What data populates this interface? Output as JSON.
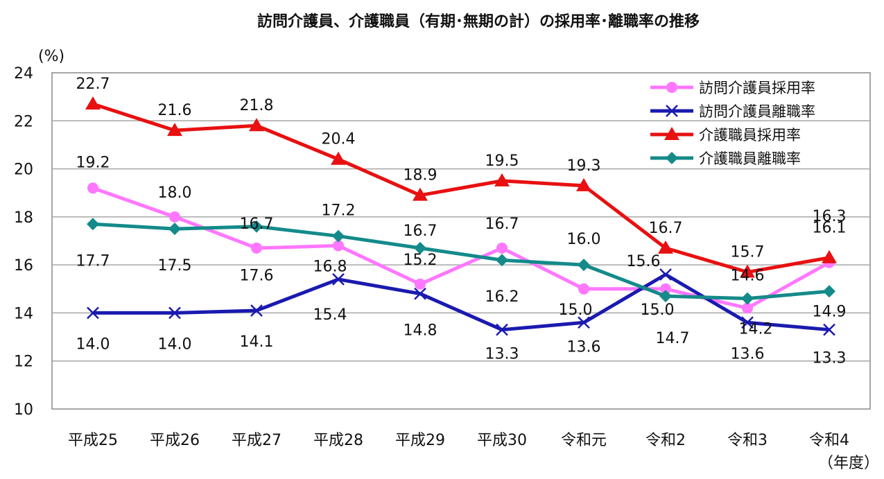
{
  "chart_data": {
    "type": "line",
    "title": "訪問介護員、介護職員（有期･無期の計）の採用率･離職率の推移",
    "ylabel": "(%)",
    "xlabel": "（年度）",
    "ylim": [
      10,
      24
    ],
    "yticks": [
      10,
      12,
      14,
      16,
      18,
      20,
      22,
      24
    ],
    "grid": true,
    "legend_position": "top-right",
    "categories": [
      "平成25",
      "平成26",
      "平成27",
      "平成28",
      "平成29",
      "平成30",
      "令和元",
      "令和2",
      "令和3",
      "令和4"
    ],
    "series": [
      {
        "name": "訪問介護員採用率",
        "color": "#FF77FF",
        "marker": "circle",
        "values": [
          19.2,
          18.0,
          16.7,
          16.8,
          15.2,
          16.7,
          15.0,
          15.0,
          14.2,
          16.1
        ]
      },
      {
        "name": "訪問介護員離職率",
        "color": "#1A1AB0",
        "marker": "x",
        "values": [
          14.0,
          14.0,
          14.1,
          15.4,
          14.8,
          13.3,
          13.6,
          15.6,
          13.6,
          13.3
        ]
      },
      {
        "name": "介護職員採用率",
        "color": "#E81010",
        "marker": "triangle",
        "values": [
          22.7,
          21.6,
          21.8,
          20.4,
          18.9,
          19.5,
          19.3,
          16.7,
          15.7,
          16.3
        ]
      },
      {
        "name": "介護職員離職率",
        "color": "#148A8A",
        "marker": "diamond",
        "values": [
          17.7,
          17.5,
          17.6,
          17.2,
          16.7,
          16.2,
          16.0,
          14.7,
          14.6,
          14.9
        ]
      }
    ]
  }
}
